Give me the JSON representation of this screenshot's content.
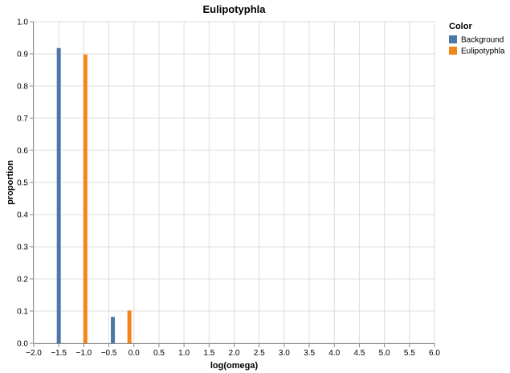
{
  "chart_data": {
    "type": "bar",
    "title": "Eulipotyphla",
    "xlabel": "log(omega)",
    "ylabel": "proportion",
    "xlim": [
      -2.0,
      6.0
    ],
    "ylim": [
      0,
      1.0
    ],
    "x_ticks": [
      "−2.0",
      "−1.5",
      "−1.0",
      "−0.5",
      "0.0",
      "0.5",
      "1.0",
      "1.5",
      "2.0",
      "2.5",
      "3.0",
      "3.5",
      "4.0",
      "4.5",
      "5.0",
      "5.5",
      "6.0"
    ],
    "y_ticks": [
      "0.0",
      "0.1",
      "0.2",
      "0.3",
      "0.4",
      "0.5",
      "0.6",
      "0.7",
      "0.8",
      "0.9",
      "1.0"
    ],
    "grid": true,
    "legend": {
      "title": "Color",
      "position": "top-right"
    },
    "series": [
      {
        "name": "Background",
        "color": "#4c78a8",
        "x": [
          -1.5,
          -0.42
        ],
        "values": [
          0.918,
          0.082
        ]
      },
      {
        "name": "Eulipotyphla",
        "color": "#f58518",
        "x": [
          -0.97,
          -0.09
        ],
        "values": [
          0.898,
          0.102
        ]
      }
    ]
  }
}
